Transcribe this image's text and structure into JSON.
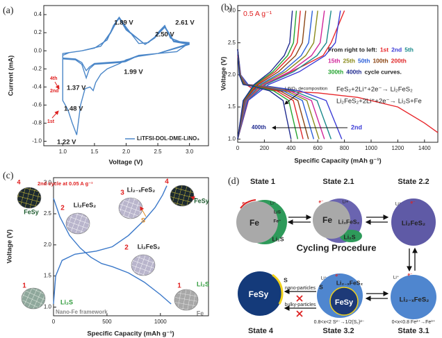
{
  "chart_data": [
    {
      "type": "line",
      "panel_label": "(a)",
      "xlabel": "Voltage (V)",
      "ylabel": "Current (mA)",
      "xlim": [
        0.7,
        3.3
      ],
      "ylim": [
        -1.05,
        0.5
      ],
      "xticks": [
        {
          "value": 1.0,
          "label": "1.0"
        },
        1.5,
        {
          "value": 2.0,
          "label": "2.0"
        },
        2.5,
        {
          "value": 3.0,
          "label": "3.0"
        }
      ],
      "yticks": [
        {
          "value": -1.0,
          "label": "-1.0"
        },
        -0.8,
        -0.6,
        -0.4,
        -0.2,
        {
          "value": 0.0,
          "label": "0.0"
        },
        0.2,
        0.4
      ],
      "legend": "lower right",
      "series": [
        {
          "name": "LiTFSI-DOL-DME-LiNO₃",
          "color": "#4a86c8",
          "x": [
            3.0,
            2.8,
            2.5,
            2.2,
            2.0,
            1.9,
            1.7,
            1.6,
            1.52,
            1.48,
            1.43,
            1.35,
            1.28,
            1.22,
            1.15,
            1.08,
            1.0,
            1.0,
            1.1,
            1.3,
            1.5,
            1.7,
            1.8,
            1.89,
            2.0,
            2.2,
            2.35,
            2.45,
            2.5,
            2.61,
            2.7,
            2.85,
            3.0,
            null,
            3.0,
            2.5,
            2.2,
            2.05,
            1.99,
            1.9,
            1.7,
            1.5,
            1.42,
            1.37,
            1.3,
            1.2,
            1.0,
            1.0,
            1.3,
            1.6,
            1.75,
            1.85,
            1.89,
            2.0,
            2.3,
            2.45,
            2.5,
            2.61,
            2.75,
            3.0,
            null,
            3.0,
            2.5,
            2.2,
            2.05,
            1.99,
            1.9,
            1.7,
            1.5,
            1.42,
            1.37,
            1.3,
            1.2,
            1.0,
            1.0,
            1.3,
            1.6,
            1.75,
            1.85,
            1.89,
            2.0,
            2.3,
            2.45,
            2.5,
            2.61,
            2.75,
            3.0
          ],
          "values": [
            0.09,
            -0.01,
            -0.03,
            -0.06,
            -0.1,
            -0.14,
            -0.2,
            -0.26,
            -0.35,
            -0.44,
            -0.4,
            -0.42,
            -0.6,
            -0.93,
            -0.8,
            -0.65,
            -0.55,
            -0.05,
            -0.02,
            0.0,
            0.03,
            0.12,
            0.28,
            0.37,
            0.26,
            0.08,
            0.09,
            0.15,
            0.2,
            0.28,
            0.14,
            0.1,
            0.09,
            null,
            0.08,
            -0.03,
            -0.05,
            -0.1,
            -0.12,
            -0.13,
            -0.14,
            -0.15,
            -0.2,
            -0.3,
            -0.15,
            -0.1,
            -0.09,
            -0.03,
            0.0,
            0.05,
            0.2,
            0.33,
            0.37,
            0.24,
            0.07,
            0.15,
            0.19,
            0.27,
            0.11,
            0.08,
            null,
            0.07,
            -0.03,
            -0.05,
            -0.09,
            -0.11,
            -0.12,
            -0.13,
            -0.14,
            -0.18,
            -0.22,
            -0.13,
            -0.09,
            -0.08,
            -0.03,
            0.0,
            0.05,
            0.19,
            0.32,
            0.36,
            0.23,
            0.07,
            0.14,
            0.18,
            0.26,
            0.1,
            0.07
          ]
        }
      ],
      "annotations": [
        "1.89 V",
        "2.61 V",
        "2.50 V",
        "1.99 V",
        "1.37 V",
        "1.48 V",
        "1.22 V",
        "1st",
        "2nd",
        "4th"
      ]
    },
    {
      "type": "line",
      "panel_label": "(b)",
      "xlabel": "Specific Capacity (mAh g⁻¹)",
      "ylabel": "Voltage (V)",
      "xlim": [
        0,
        1500
      ],
      "ylim": [
        0.95,
        3.08
      ],
      "xticks": [
        0,
        200,
        400,
        600,
        800,
        1000,
        1200,
        1400
      ],
      "yticks": [
        {
          "value": 1.0,
          "label": "1.0"
        },
        1.5,
        {
          "value": 2.0,
          "label": "2.0"
        },
        2.5,
        {
          "value": 3.0,
          "label": "3.0"
        }
      ],
      "legend_title": "From right to left:",
      "legend_suffix": "cycle curves.",
      "series": [
        {
          "name": "1st",
          "color": "#e8262a",
          "x": [
            0,
            30,
            100,
            300,
            600,
            900,
            1200,
            1400,
            1500,
            null,
            0,
            100,
            300,
            500,
            640,
            700,
            760,
            800
          ],
          "values": [
            2.3,
            1.9,
            1.8,
            1.75,
            1.72,
            1.65,
            1.5,
            1.25,
            1.1,
            null,
            1.0,
            1.75,
            1.95,
            2.15,
            2.3,
            2.5,
            2.8,
            3.0
          ]
        },
        {
          "name": "2nd",
          "color": "#3b3bd6",
          "x": [
            0,
            23,
            78,
            234,
            468,
            663,
            780,
            null,
            0,
            77,
            231,
            462,
            655,
            732,
            770
          ],
          "values": [
            2.4,
            2.0,
            1.85,
            1.82,
            1.75,
            1.6,
            1.0,
            null,
            1.0,
            1.6,
            1.85,
            2.05,
            2.3,
            2.5,
            3.0
          ]
        },
        {
          "name": "5th",
          "color": "#1a8a8a",
          "x": [
            0,
            21,
            70,
            210,
            420,
            595,
            700,
            null,
            0,
            70,
            210,
            420,
            595,
            665,
            700
          ],
          "values": [
            2.4,
            2.0,
            1.85,
            1.82,
            1.75,
            1.6,
            1.0,
            null,
            1.0,
            1.6,
            1.85,
            2.05,
            2.3,
            2.5,
            3.0
          ]
        },
        {
          "name": "15th",
          "color": "#d0259a",
          "x": [
            0,
            20,
            65,
            195,
            390,
            553,
            650,
            null,
            0,
            65,
            195,
            390,
            553,
            618,
            650
          ],
          "values": [
            2.4,
            2.0,
            1.85,
            1.82,
            1.75,
            1.6,
            1.0,
            null,
            1.0,
            1.6,
            1.85,
            2.05,
            2.3,
            2.5,
            3.0
          ]
        },
        {
          "name": "25th",
          "color": "#8a8a1a",
          "x": [
            0,
            18,
            61,
            183,
            366,
            519,
            610,
            null,
            0,
            60,
            180,
            360,
            510,
            570,
            600
          ],
          "values": [
            2.4,
            2.0,
            1.85,
            1.82,
            1.75,
            1.6,
            1.0,
            null,
            1.0,
            1.6,
            1.85,
            2.05,
            2.3,
            2.5,
            3.0
          ]
        },
        {
          "name": "50th",
          "color": "#2b5fd9",
          "x": [
            0,
            17,
            57,
            171,
            342,
            485,
            570,
            null,
            0,
            56,
            168,
            336,
            476,
            532,
            560
          ],
          "values": [
            2.4,
            2.0,
            1.85,
            1.82,
            1.75,
            1.6,
            1.0,
            null,
            1.0,
            1.6,
            1.85,
            2.05,
            2.3,
            2.5,
            3.0
          ]
        },
        {
          "name": "100th",
          "color": "#8b4513",
          "x": [
            0,
            16,
            53,
            159,
            318,
            451,
            530,
            null,
            0,
            51,
            153,
            306,
            434,
            485,
            510
          ],
          "values": [
            2.4,
            2.0,
            1.85,
            1.82,
            1.75,
            1.6,
            1.0,
            null,
            1.0,
            1.6,
            1.85,
            2.05,
            2.3,
            2.5,
            3.0
          ]
        },
        {
          "name": "200th",
          "color": "#e0282a",
          "x": [
            0,
            15,
            49,
            147,
            294,
            417,
            490,
            null,
            0,
            47,
            141,
            282,
            400,
            447,
            470
          ],
          "values": [
            2.4,
            2.0,
            1.85,
            1.82,
            1.75,
            1.6,
            1.0,
            null,
            1.0,
            1.6,
            1.85,
            2.05,
            2.3,
            2.5,
            3.0
          ]
        },
        {
          "name": "300th",
          "color": "#22a32e",
          "x": [
            0,
            14,
            45,
            135,
            270,
            383,
            450,
            null,
            0,
            44,
            132,
            264,
            374,
            418,
            440
          ],
          "values": [
            2.4,
            2.0,
            1.85,
            1.82,
            1.75,
            1.6,
            1.0,
            null,
            1.0,
            1.6,
            1.85,
            2.05,
            2.3,
            2.5,
            3.0
          ]
        },
        {
          "name": "400th",
          "color": "#1f2a8f",
          "x": [
            0,
            12,
            40,
            120,
            240,
            340,
            400,
            null,
            0,
            41,
            123,
            246,
            349,
            390,
            410
          ],
          "values": [
            2.4,
            2.0,
            1.85,
            1.82,
            1.75,
            1.6,
            1.0,
            null,
            1.0,
            1.6,
            1.85,
            2.05,
            2.3,
            2.5,
            3.0
          ]
        }
      ],
      "annotations": [
        "0.5 A g⁻¹",
        "LiNO₃ decomposition",
        "FeS₂+2Li⁺+2e⁻→ Li₂FeS₂",
        "Li₂FeS₂+2Li⁺+2e⁻→ Li₂S+Fe",
        "400th",
        "2nd"
      ]
    },
    {
      "type": "line",
      "panel_label": "(c)",
      "xlabel": "Specific Capacity (mAh g⁻¹)",
      "ylabel": "Voltage (V)",
      "xlim": [
        0,
        1450
      ],
      "ylim": [
        0.86,
        3.08
      ],
      "xticks": [
        0,
        500,
        1000
      ],
      "yticks": [
        {
          "value": 1.0,
          "label": "1.0"
        },
        1.5,
        {
          "value": 2.0,
          "label": "2.0"
        },
        2.5,
        {
          "value": 3.0,
          "label": "3.0"
        }
      ],
      "series": [
        {
          "color": "#3a78c9",
          "x": [
            0,
            60,
            150,
            250,
            350,
            450,
            550,
            700,
            850,
            1000,
            1100,
            null,
            0,
            20,
            80,
            200,
            400,
            550,
            700,
            850,
            950,
            1020,
            1060
          ],
          "values": [
            2.75,
            2.45,
            2.15,
            1.95,
            1.8,
            1.7,
            1.65,
            1.55,
            1.4,
            1.2,
            1.05,
            null,
            1.05,
            1.5,
            1.75,
            1.85,
            1.9,
            1.97,
            2.15,
            2.4,
            2.6,
            2.8,
            2.95
          ]
        }
      ],
      "annotations": [
        "2nd cycle at 0.05 A g⁻¹",
        "4",
        "FeSy",
        "2",
        "Li₂FeS₂",
        "3",
        "Li₂₋ₓFeS₂",
        "S",
        "4",
        "FeSy",
        "2",
        "Li₂FeS₂",
        "1",
        "Li₂S",
        "Nano-Fe framework",
        "1",
        "Li₂S",
        "Fe"
      ]
    }
  ],
  "diagram": {
    "panel_label": "(d)",
    "title": "Cycling Procedure",
    "states": [
      "State 1",
      "State 2.1",
      "State 2.2",
      "State 3.1",
      "State 3.2",
      "State 4"
    ],
    "labels": [
      "Fe",
      "LiS",
      "Fe⁺",
      "Li₂S",
      "Fe",
      "Li₂FeS₂",
      "Li₂S",
      "Li₂FeS₂",
      "FeSy",
      "S",
      "FeSy",
      "S",
      "Li₂₋ₓFeS₂",
      "Li₂₋ₓFeS₂"
    ],
    "pathways": [
      "nano-particles",
      "bulky-particles"
    ],
    "notes": [
      "0.8<x<2 S²⁻→1/2(S₂)²⁻",
      "0<x<0.8 Fe²⁺→Fe³⁺"
    ],
    "small_labels": [
      "e⁻",
      "Li⁺",
      "e⁻",
      "Li+",
      "Li⁺",
      "e⁻",
      "Li⁺",
      "e⁻",
      "Li⁺",
      "e⁻"
    ]
  }
}
